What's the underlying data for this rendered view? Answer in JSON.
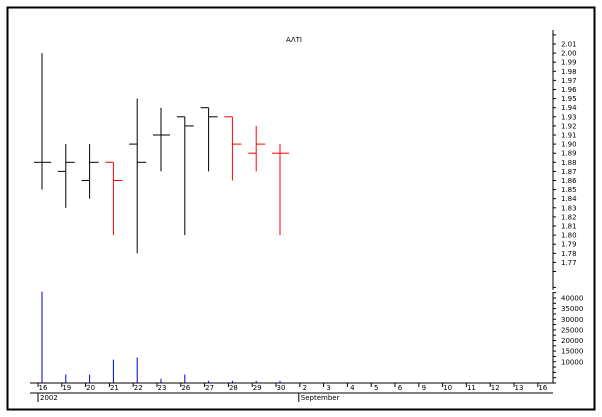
{
  "chart_data": {
    "type": "ohlc",
    "title": "ΑΛΤΙ",
    "dates": [
      "16",
      "19",
      "20",
      "21",
      "22",
      "23",
      "26",
      "27",
      "28",
      "29",
      "30"
    ],
    "ohlc": [
      {
        "open": 1.88,
        "high": 2.0,
        "low": 1.85,
        "close": 1.88,
        "direction": "up"
      },
      {
        "open": 1.87,
        "high": 1.9,
        "low": 1.83,
        "close": 1.88,
        "direction": "up"
      },
      {
        "open": 1.86,
        "high": 1.9,
        "low": 1.84,
        "close": 1.88,
        "direction": "up"
      },
      {
        "open": 1.88,
        "high": 1.88,
        "low": 1.8,
        "close": 1.86,
        "direction": "down"
      },
      {
        "open": 1.9,
        "high": 1.95,
        "low": 1.78,
        "close": 1.88,
        "direction": "up"
      },
      {
        "open": 1.91,
        "high": 1.94,
        "low": 1.87,
        "close": 1.91,
        "direction": "up"
      },
      {
        "open": 1.93,
        "high": 1.93,
        "low": 1.8,
        "close": 1.92,
        "direction": "up"
      },
      {
        "open": 1.94,
        "high": 1.94,
        "low": 1.87,
        "close": 1.93,
        "direction": "up"
      },
      {
        "open": 1.93,
        "high": 1.93,
        "low": 1.86,
        "close": 1.9,
        "direction": "down"
      },
      {
        "open": 1.89,
        "high": 1.92,
        "low": 1.87,
        "close": 1.9,
        "direction": "down"
      },
      {
        "open": 1.89,
        "high": 1.9,
        "low": 1.8,
        "close": 1.89,
        "direction": "down"
      }
    ],
    "volume": [
      43000,
      4000,
      4000,
      11000,
      12000,
      2000,
      4000,
      1000,
      1000,
      1000,
      1000
    ],
    "price_axis": {
      "min": 1.76,
      "max": 2.02,
      "tick_labels": [
        "2.01",
        "2.00",
        "1.99",
        "1.98",
        "1.97",
        "1.96",
        "1.95",
        "1.94",
        "1.93",
        "1.92",
        "1.91",
        "1.90",
        "1.89",
        "1.88",
        "1.87",
        "1.86",
        "1.85",
        "1.84",
        "1.83",
        "1.82",
        "1.81",
        "1.80",
        "1.79",
        "1.78",
        "1.77"
      ]
    },
    "volume_axis": {
      "min": 0,
      "max": 45000,
      "tick_labels": [
        "40000",
        "35000",
        "30000",
        "25000",
        "20000",
        "15000",
        "10000"
      ]
    },
    "x_tick_labels": [
      "16",
      "19",
      "20",
      "21",
      "22",
      "23",
      "26",
      "27",
      "28",
      "29",
      "30",
      "2",
      "3",
      "4",
      "5",
      "6",
      "9",
      "10",
      "11",
      "12",
      "13",
      "16"
    ],
    "period_labels": [
      "2002",
      "September"
    ],
    "colors": {
      "up": "#000000",
      "down": "#ff0000",
      "volume": "#0000cc",
      "frame": "#000000"
    },
    "grid": false
  }
}
